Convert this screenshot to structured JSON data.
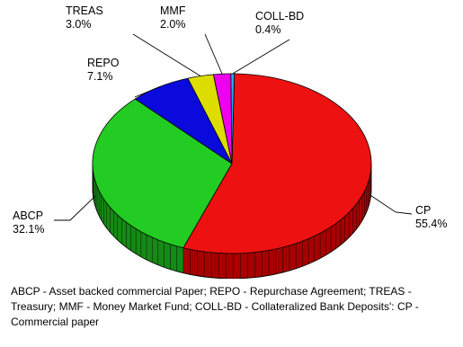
{
  "chart_data": {
    "type": "pie",
    "title": "",
    "style": "3d",
    "slices": [
      {
        "label": "CP",
        "value": 55.4,
        "display": "55.4%",
        "color": "#ee1111",
        "side_color": "#a80000"
      },
      {
        "label": "ABCP",
        "value": 32.1,
        "display": "32.1%",
        "color": "#22cc22",
        "side_color": "#158a15"
      },
      {
        "label": "REPO",
        "value": 7.1,
        "display": "7.1%",
        "color": "#0a0add",
        "side_color": "#05058a"
      },
      {
        "label": "TREAS",
        "value": 3.0,
        "display": "3.0%",
        "color": "#dddd00",
        "side_color": "#8f8f00"
      },
      {
        "label": "MMF",
        "value": 2.0,
        "display": "2.0%",
        "color": "#ee00ee",
        "side_color": "#990099"
      },
      {
        "label": "COLL-BD",
        "value": 0.4,
        "display": "0.4%",
        "color": "#22aaee",
        "side_color": "#116699"
      }
    ]
  },
  "caption": "ABCP - Asset backed commercial Paper; REPO - Repurchase Agreement; TREAS - Treasury; MMF - Money Market Fund; COLL-BD - Collateralized Bank Deposits': CP - Commercial paper"
}
